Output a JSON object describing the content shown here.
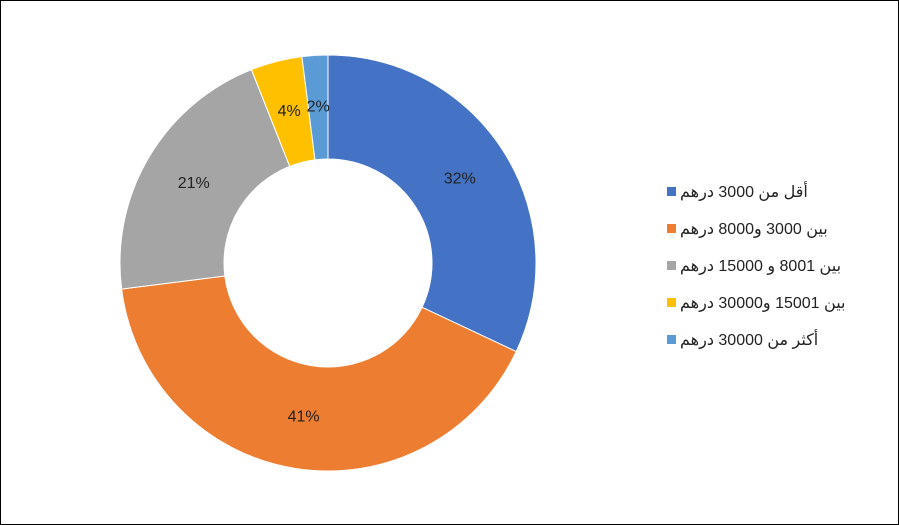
{
  "chart_data": {
    "type": "donut",
    "categories": [
      "أقل من 3000 درهم",
      "بين 3000 و8000 درهم",
      "بين 8001 و 15000 درهم",
      "بين 15001 و30000 درهم",
      "أكثر من 30000 درهم"
    ],
    "values": [
      32,
      41,
      21,
      4,
      2
    ],
    "value_labels": [
      "32%",
      "41%",
      "21%",
      "4%",
      "2%"
    ],
    "colors": [
      "#4472c4",
      "#ed7d31",
      "#a5a5a5",
      "#ffc000",
      "#5b9bd5"
    ],
    "legend": "right"
  }
}
